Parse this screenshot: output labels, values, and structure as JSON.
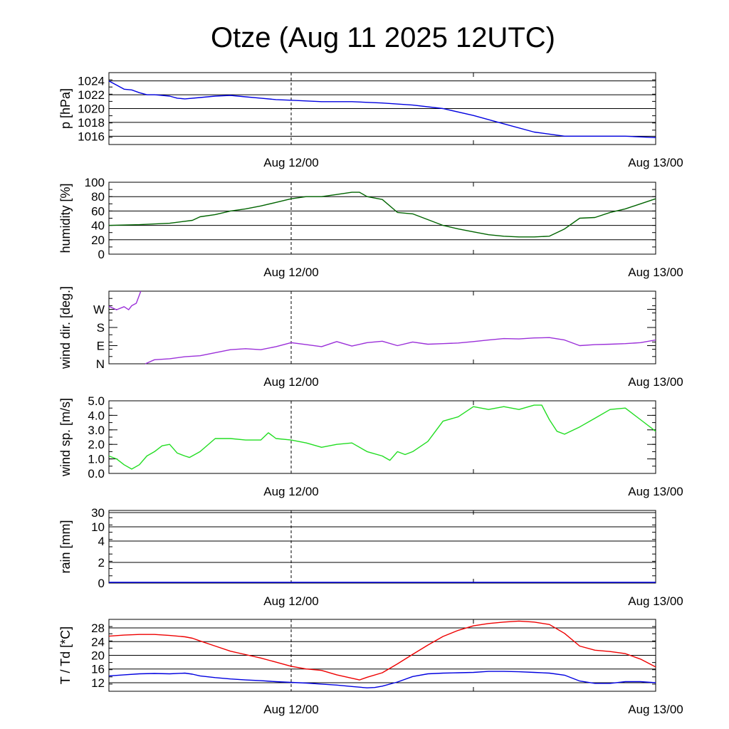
{
  "title": "Otze (Aug 11 2025 12UTC)",
  "x_tick_labels": [
    "Aug 12/00",
    "Aug 13/00"
  ],
  "chart_data": [
    {
      "type": "line",
      "ylabel": "p [hPa]",
      "ylim": [
        1014.8,
        1025.2
      ],
      "yticks": [
        1016,
        1018,
        1020,
        1022,
        1024
      ],
      "grid": true,
      "color": "#0000e0",
      "x": [
        0,
        0.5,
        1,
        1.5,
        2,
        2.5,
        3,
        3.5,
        4,
        4.5,
        5,
        6,
        7,
        8,
        9,
        10,
        11,
        12,
        14,
        16,
        18,
        20,
        22,
        24,
        26,
        28,
        30,
        32,
        34,
        36
      ],
      "values": [
        1024.0,
        1023.4,
        1022.8,
        1022.7,
        1022.3,
        1022.0,
        1022.0,
        1021.9,
        1021.8,
        1021.5,
        1021.4,
        1021.6,
        1021.8,
        1021.9,
        1021.7,
        1021.5,
        1021.3,
        1021.2,
        1021.0,
        1021.0,
        1020.8,
        1020.5,
        1020.0,
        1019.0,
        1017.8,
        1016.6,
        1016.0,
        1016.0,
        1016.0,
        1015.8
      ]
    },
    {
      "type": "line",
      "ylabel": "humidity [%]",
      "ylim": [
        0,
        100
      ],
      "yticks": [
        0,
        20,
        40,
        60,
        80,
        100
      ],
      "grid": true,
      "color": "#006400",
      "x": [
        0,
        2,
        4,
        5.5,
        6,
        7,
        8,
        9,
        10,
        11,
        12,
        13,
        14,
        15,
        16,
        16.5,
        17,
        18,
        19,
        20,
        21,
        22,
        23,
        24,
        25,
        26,
        27,
        28,
        29,
        30,
        31,
        32,
        33,
        34,
        35,
        36
      ],
      "values": [
        40,
        41,
        43,
        47,
        52,
        55,
        60,
        63,
        67,
        72,
        77,
        80,
        80,
        83,
        86,
        86,
        80,
        76,
        58,
        56,
        48,
        40,
        35,
        31,
        27,
        25,
        24,
        24,
        25,
        35,
        50,
        51,
        58,
        63,
        70,
        77
      ]
    },
    {
      "type": "line",
      "ylabel": "wind dir. [deg.]",
      "ylim": [
        0,
        360
      ],
      "ytick_labels": [
        "N",
        "E",
        "S",
        "W"
      ],
      "yticks": [
        0,
        90,
        180,
        270
      ],
      "grid": false,
      "color": "#9b30d9",
      "segments": [
        {
          "x": [
            0,
            0.5,
            1,
            1.3,
            1.5,
            1.8,
            2.1
          ],
          "values": [
            285,
            268,
            283,
            268,
            288,
            300,
            360
          ]
        },
        {
          "x": [
            2.4,
            3,
            4,
            5,
            6,
            7,
            8,
            9,
            10,
            11,
            12,
            13,
            14,
            15,
            16,
            17,
            18,
            19,
            20,
            21,
            22,
            23,
            24,
            25,
            26,
            27,
            28,
            29,
            30,
            31,
            32,
            33,
            34,
            35,
            36
          ],
          "values": [
            0,
            20,
            25,
            35,
            40,
            55,
            70,
            75,
            70,
            85,
            105,
            95,
            85,
            110,
            88,
            105,
            112,
            90,
            108,
            97,
            100,
            103,
            110,
            118,
            125,
            123,
            128,
            130,
            118,
            90,
            95,
            97,
            100,
            105,
            118
          ]
        }
      ]
    },
    {
      "type": "line",
      "ylabel": "wind sp. [m/s]",
      "ylim": [
        0,
        5.0
      ],
      "yticks": [
        0.0,
        1.0,
        2.0,
        3.0,
        4.0,
        5.0
      ],
      "ytick_labels": [
        "0.0",
        "1.0",
        "2.0",
        "3.0",
        "4.0",
        "5.0"
      ],
      "grid": false,
      "color": "#22dd22",
      "x": [
        0,
        0.5,
        1,
        1.5,
        2,
        2.5,
        3,
        3.5,
        4,
        4.5,
        5,
        5.3,
        6,
        7,
        8,
        9,
        10,
        10.5,
        11,
        12,
        13,
        14,
        15,
        16,
        17,
        18,
        18.5,
        19,
        19.5,
        20,
        21,
        22,
        23,
        24,
        25,
        26,
        27,
        28,
        28.5,
        29,
        29.5,
        30,
        31,
        32,
        33,
        34,
        35,
        36
      ],
      "values": [
        1.2,
        1.0,
        0.6,
        0.3,
        0.6,
        1.2,
        1.5,
        1.9,
        2.0,
        1.4,
        1.2,
        1.1,
        1.5,
        2.4,
        2.4,
        2.3,
        2.3,
        2.8,
        2.4,
        2.3,
        2.1,
        1.8,
        2.0,
        2.1,
        1.5,
        1.2,
        0.9,
        1.5,
        1.3,
        1.5,
        2.2,
        3.6,
        3.9,
        4.6,
        4.4,
        4.6,
        4.4,
        4.7,
        4.7,
        3.7,
        2.9,
        2.7,
        3.2,
        3.8,
        4.4,
        4.5,
        3.7,
        2.9
      ]
    },
    {
      "type": "line",
      "ylabel": "rain [mm]",
      "ytick_labels": [
        "0",
        "2",
        "4",
        "10",
        "30"
      ],
      "grid": true,
      "color": "#0000e0",
      "x": [
        0,
        36
      ],
      "values": [
        0,
        0
      ]
    },
    {
      "type": "line",
      "ylabel": "T / Td [*C]",
      "ylim": [
        9.5,
        30.5
      ],
      "yticks": [
        12,
        16,
        20,
        24,
        28
      ],
      "grid": true,
      "series": [
        {
          "color": "#ee0000",
          "x": [
            0,
            1,
            2,
            3,
            4,
            5,
            5.5,
            6,
            7,
            8,
            9,
            10,
            11,
            12,
            13,
            14,
            15,
            16,
            16.5,
            17,
            18,
            19,
            20,
            21,
            22,
            23,
            24,
            25,
            26,
            27,
            28,
            29,
            30,
            31,
            32,
            33,
            34,
            35,
            36
          ],
          "values": [
            25.6,
            25.9,
            26.1,
            26.1,
            25.8,
            25.4,
            25.0,
            24.2,
            22.7,
            21.2,
            20.2,
            19.2,
            18.0,
            16.8,
            16.0,
            15.6,
            14.3,
            13.3,
            12.8,
            13.6,
            14.9,
            17.5,
            20.3,
            23.0,
            25.5,
            27.3,
            28.6,
            29.3,
            29.7,
            30.0,
            29.7,
            29.0,
            26.4,
            22.7,
            21.5,
            21.1,
            20.5,
            18.9,
            16.6
          ]
        },
        {
          "color": "#0000e0",
          "x": [
            0,
            1,
            2,
            3,
            4,
            5,
            5.5,
            6,
            7,
            8,
            9,
            10,
            11,
            12,
            13,
            14,
            15,
            16,
            17,
            17.5,
            18,
            19,
            20,
            21,
            22,
            23,
            24,
            25,
            26,
            27,
            28,
            29,
            30,
            31,
            32,
            33,
            34,
            35,
            36
          ],
          "values": [
            14.0,
            14.3,
            14.6,
            14.7,
            14.6,
            14.8,
            14.5,
            14.0,
            13.5,
            13.1,
            12.8,
            12.6,
            12.3,
            12.1,
            11.9,
            11.6,
            11.3,
            10.9,
            10.5,
            10.6,
            11.0,
            12.2,
            13.8,
            14.6,
            14.8,
            14.9,
            15.0,
            15.3,
            15.3,
            15.2,
            15.0,
            14.8,
            14.2,
            12.5,
            11.8,
            11.8,
            12.3,
            12.3,
            12.0
          ]
        }
      ]
    }
  ]
}
